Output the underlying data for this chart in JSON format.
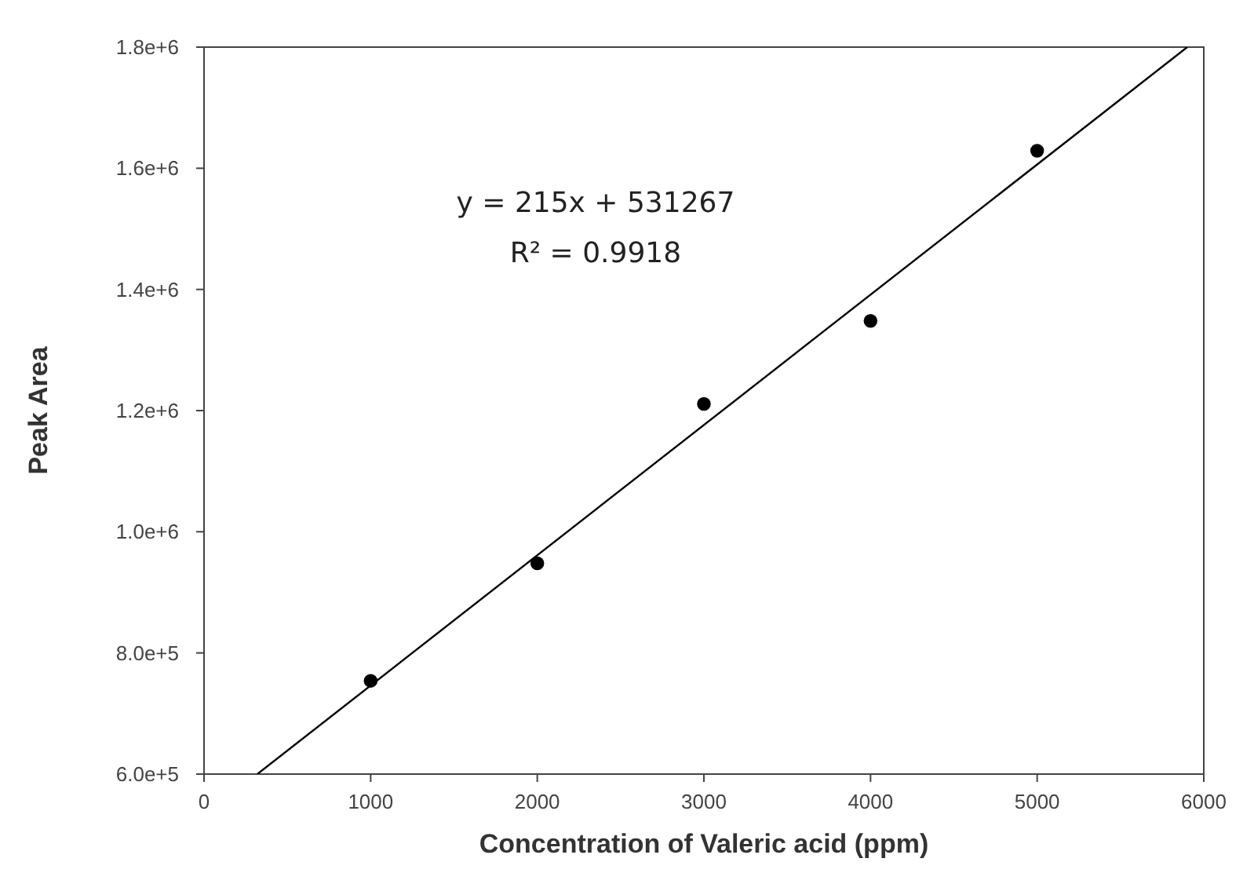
{
  "chart_data": {
    "type": "scatter",
    "xlabel": "Concentration of Valeric acid (ppm)",
    "ylabel": "Peak Area",
    "xlim": [
      0,
      6000
    ],
    "xticks": [
      0,
      1000,
      2000,
      3000,
      4000,
      5000,
      6000
    ],
    "ylim": [
      600000,
      1800000
    ],
    "yticks": [
      {
        "value": 600000,
        "label": "6.0e+5"
      },
      {
        "value": 800000,
        "label": "8.0e+5"
      },
      {
        "value": 1000000,
        "label": "1.0e+6"
      },
      {
        "value": 1200000,
        "label": "1.2e+6"
      },
      {
        "value": 1400000,
        "label": "1.4e+6"
      },
      {
        "value": 1600000,
        "label": "1.6e+6"
      },
      {
        "value": 1800000,
        "label": "1.8e+6"
      }
    ],
    "grid": false,
    "annotations": [
      "y = 215x + 531267",
      "R² = 0.9918"
    ],
    "series": [
      {
        "color": "#000000",
        "marker": "circle",
        "x": [
          1000,
          2000,
          3000,
          4000,
          5000
        ],
        "values": [
          754000,
          948000,
          1211000,
          1348000,
          1629000
        ]
      },
      {
        "type": "line",
        "color": "#000000",
        "marker": "none",
        "line_style": "solid",
        "x": [
          320,
          5901
        ],
        "values": [
          600000,
          1800000
        ]
      }
    ]
  }
}
